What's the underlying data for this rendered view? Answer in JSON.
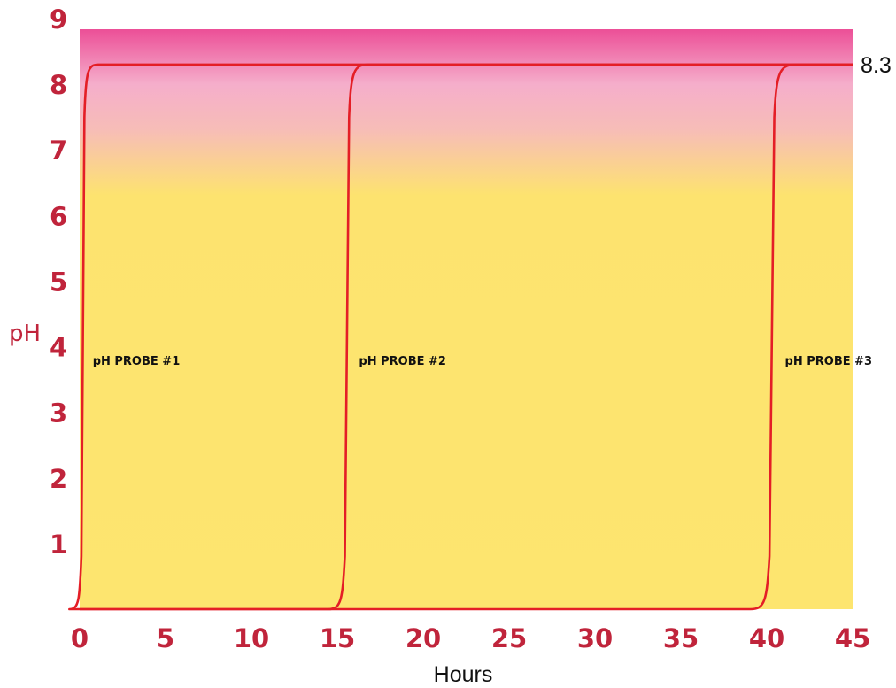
{
  "chart_data": {
    "type": "line",
    "xlabel": "Hours",
    "ylabel": "pH",
    "xlim": [
      0,
      45
    ],
    "ylim": [
      0,
      9
    ],
    "x_ticks": [
      "0",
      "5",
      "10",
      "15",
      "20",
      "25",
      "30",
      "35",
      "40",
      "45"
    ],
    "y_ticks": [
      "1",
      "2",
      "3",
      "4",
      "5",
      "6",
      "7",
      "8",
      "9"
    ],
    "grid": false,
    "background_gradient": [
      {
        "ph": 9,
        "color": "#ec4f97"
      },
      {
        "ph": 8,
        "color": "#f5aecb"
      },
      {
        "ph": 7.3,
        "color": "#f7bdb7"
      },
      {
        "ph": 6.3,
        "color": "#fde36f"
      },
      {
        "ph": 0,
        "color": "#fde56f"
      }
    ],
    "line_color": "#e41e26",
    "end_value_label": "8.3",
    "series": [
      {
        "name": "pH PROBE #1",
        "rise_start": 0.0,
        "rise_end": 0.5,
        "plateau": 8.3,
        "plateau_end": 45
      },
      {
        "name": "pH PROBE #2",
        "rise_start": 15.3,
        "rise_end": 16.0,
        "plateau": 8.3,
        "plateau_end": 45
      },
      {
        "name": "pH PROBE #3",
        "rise_start": 40.0,
        "rise_end": 40.8,
        "plateau": 8.3,
        "plateau_end": 45
      }
    ]
  }
}
